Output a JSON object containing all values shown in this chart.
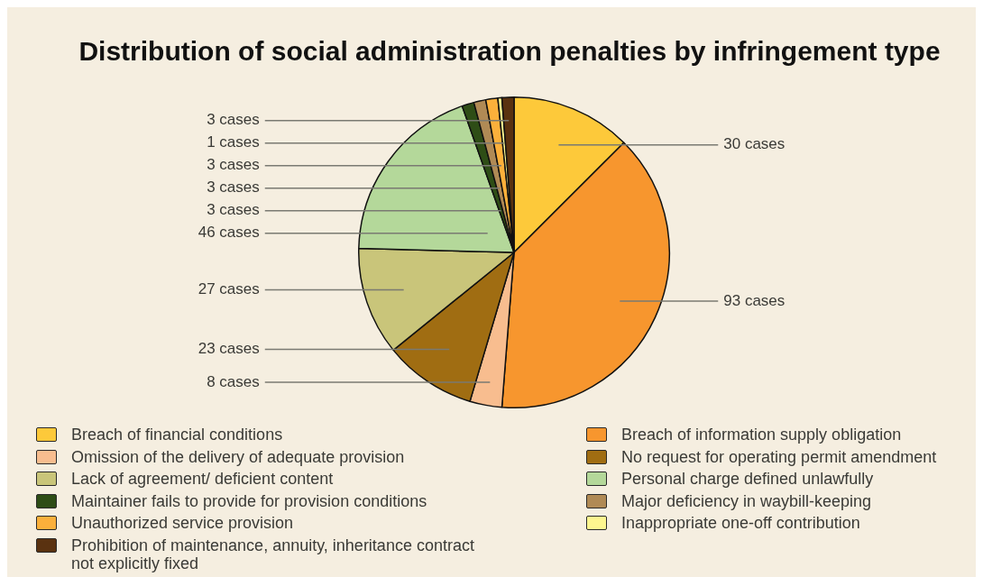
{
  "chart_data": {
    "type": "pie",
    "title": "Distribution of social administration penalties by infringement type",
    "categories": [
      "Breach of financial conditions",
      "Breach of information supply obligation",
      "Omission of the delivery of adequate provision",
      "No request for operating permit amendment",
      "Lack of agreement/ deficient content",
      "Personal charge defined unlawfully",
      "Maintainer fails to provide for provision conditions",
      "Major deficiency in waybill-keeping",
      "Unauthorized service provision",
      "Inappropriate one-off contribution",
      "Prohibition of maintenance, annuity, inheritance contract not explicitly fixed"
    ],
    "values": [
      30,
      93,
      8,
      23,
      27,
      46,
      3,
      3,
      3,
      1,
      3
    ],
    "colors": [
      "#fdc93a",
      "#f7962e",
      "#f8bd8f",
      "#a06d12",
      "#c9c57a",
      "#b4d89a",
      "#2e4d16",
      "#b08a55",
      "#fbb03b",
      "#fdf68f",
      "#5a3210"
    ],
    "value_labels": [
      "30 cases",
      "93 cases",
      "8 cases",
      "23 cases",
      "27 cases",
      "46 cases",
      "3 cases",
      "3 cases",
      "3 cases",
      "1 cases",
      "3 cases"
    ],
    "legend": "bottom"
  }
}
